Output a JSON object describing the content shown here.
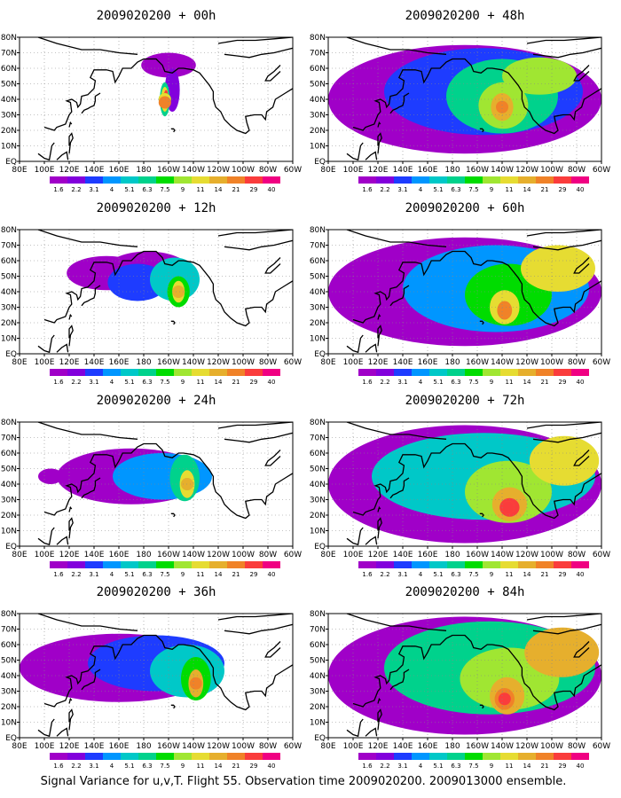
{
  "caption": "Signal Variance for u,v,T. Flight 55. Observation time 2009020200. 2009013000 ensemble.",
  "colorbar": {
    "labels": [
      "1.6",
      "2.2",
      "3.1",
      "4",
      "5.1",
      "6.3",
      "7.5",
      "9",
      "11",
      "14",
      "21",
      "29",
      "40"
    ],
    "colors": [
      "#a000c8",
      "#8200dc",
      "#1e3cff",
      "#0096ff",
      "#00c8c8",
      "#00d28c",
      "#00dc00",
      "#a0e632",
      "#e6dc32",
      "#e6af2d",
      "#f08228",
      "#fa3c3c",
      "#f00082"
    ]
  },
  "map": {
    "lon_ticks": [
      "80E",
      "100E",
      "120E",
      "140E",
      "160E",
      "180",
      "160W",
      "140W",
      "120W",
      "100W",
      "80W",
      "60W"
    ],
    "lat_ticks": [
      "80N",
      "70N",
      "60N",
      "50N",
      "40N",
      "30N",
      "20N",
      "10N",
      "EQ"
    ]
  },
  "chart_data": [
    {
      "type": "heatmap",
      "title": "2009020200 + 00h",
      "lead_hours": 0,
      "features": [
        {
          "lon": 197,
          "lat": 40,
          "level": 6
        },
        {
          "lon": 197,
          "lat": 40,
          "level": 8
        },
        {
          "lon": 197,
          "lat": 38,
          "level": 10
        }
      ]
    },
    {
      "type": "heatmap",
      "title": "2009020200 + 12h",
      "lead_hours": 12,
      "features": [
        {
          "lon": 208,
          "lat": 40,
          "level": 7
        },
        {
          "lon": 208,
          "lat": 40,
          "level": 9
        }
      ]
    },
    {
      "type": "heatmap",
      "title": "2009020200 + 24h",
      "lead_hours": 24,
      "features": [
        {
          "lon": 215,
          "lat": 40,
          "level": 7
        },
        {
          "lon": 215,
          "lat": 40,
          "level": 9
        }
      ]
    },
    {
      "type": "heatmap",
      "title": "2009020200 + 36h",
      "lead_hours": 36,
      "features": [
        {
          "lon": 222,
          "lat": 35,
          "level": 8
        },
        {
          "lon": 222,
          "lat": 35,
          "level": 10
        }
      ]
    },
    {
      "type": "heatmap",
      "title": "2009020200 + 48h",
      "lead_hours": 48,
      "features": [
        {
          "lon": 220,
          "lat": 35,
          "level": 9
        },
        {
          "lon": 220,
          "lat": 35,
          "level": 10
        }
      ]
    },
    {
      "type": "heatmap",
      "title": "2009020200 + 60h",
      "lead_hours": 60,
      "features": [
        {
          "lon": 222,
          "lat": 28,
          "level": 9
        },
        {
          "lon": 222,
          "lat": 28,
          "level": 10
        }
      ]
    },
    {
      "type": "heatmap",
      "title": "2009020200 + 72h",
      "lead_hours": 72,
      "features": [
        {
          "lon": 225,
          "lat": 25,
          "level": 10
        },
        {
          "lon": 225,
          "lat": 25,
          "level": 11
        }
      ]
    },
    {
      "type": "heatmap",
      "title": "2009020200 + 84h",
      "lead_hours": 84,
      "features": [
        {
          "lon": 222,
          "lat": 25,
          "level": 10
        },
        {
          "lon": 222,
          "lat": 25,
          "level": 11
        }
      ]
    }
  ]
}
